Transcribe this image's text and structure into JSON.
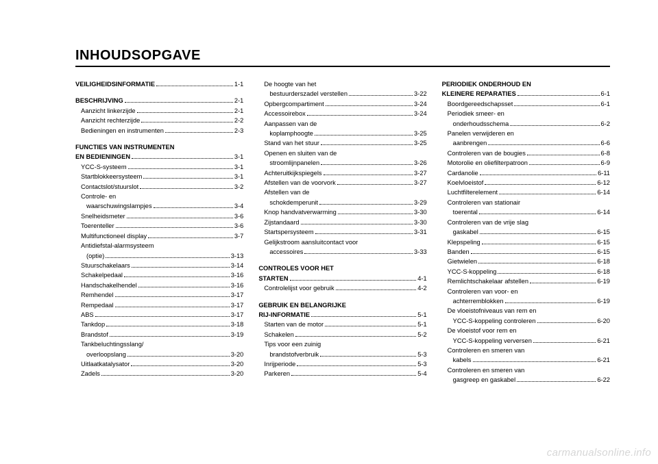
{
  "title": "INHOUDSOPGAVE",
  "watermark": "carmanualsonline.info",
  "sections": [
    {
      "head": {
        "label": "VEILIGHEIDSINFORMATIE",
        "page": "1-1",
        "leaders": true
      },
      "items": []
    },
    {
      "head": {
        "label": "BESCHRIJVING",
        "page": "2-1",
        "leaders": true
      },
      "items": [
        {
          "label": "Aanzicht linkerzijde",
          "page": "2-1"
        },
        {
          "label": "Aanzicht rechterzijde",
          "page": "2-2"
        },
        {
          "label": "Bedieningen en instrumenten",
          "page": "2-3"
        }
      ]
    },
    {
      "head": {
        "label": "FUNCTIES VAN INSTRUMENTEN",
        "cont": "EN BEDIENINGEN",
        "page": "3-1",
        "leaders": true
      },
      "items": [
        {
          "label": "YCC-S-systeem",
          "page": "3-1"
        },
        {
          "label": "Startblokkeersysteem",
          "page": "3-1"
        },
        {
          "label": "Contactslot/stuurslot",
          "page": "3-2"
        },
        {
          "wrap": "Controle- en",
          "label": "waarschuwingslampjes",
          "page": "3-4"
        },
        {
          "label": "Snelheidsmeter",
          "page": "3-6"
        },
        {
          "label": "Toerenteller",
          "page": "3-6"
        },
        {
          "label": "Multifunctioneel display",
          "page": "3-7"
        },
        {
          "wrap": "Antidiefstal-alarmsysteem",
          "label": "(optie)",
          "page": "3-13"
        },
        {
          "label": "Stuurschakelaars",
          "page": "3-14"
        },
        {
          "label": "Schakelpedaal",
          "page": "3-16"
        },
        {
          "label": "Handschakelhendel",
          "page": "3-16"
        },
        {
          "label": "Remhendel",
          "page": "3-17"
        },
        {
          "label": "Rempedaal",
          "page": "3-17"
        },
        {
          "label": "ABS",
          "page": "3-17"
        },
        {
          "label": "Tankdop",
          "page": "3-18"
        },
        {
          "label": "Brandstof",
          "page": "3-19"
        },
        {
          "wrap": "Tankbeluchtingsslang/",
          "label": "overloopslang",
          "page": "3-20"
        },
        {
          "label": "Uitlaatkatalysator",
          "page": "3-20"
        },
        {
          "label": "Zadels",
          "page": "3-20"
        }
      ]
    },
    {
      "raw": true,
      "items": [
        {
          "wrap": "De hoogte van het",
          "label": "bestuurderszadel verstellen",
          "page": "3-22"
        },
        {
          "label": "Opbergcompartiment",
          "page": "3-24"
        },
        {
          "label": "Accessoirebox",
          "page": "3-24"
        },
        {
          "wrap": "Aanpassen van de",
          "label": "koplamphoogte",
          "page": "3-25"
        },
        {
          "label": "Stand van het stuur",
          "page": "3-25"
        },
        {
          "wrap": "Openen en sluiten van de",
          "label": "stroomlijnpanelen",
          "page": "3-26"
        },
        {
          "label": "Achteruitkijkspiegels",
          "page": "3-27"
        },
        {
          "label": "Afstellen van de voorvork",
          "page": "3-27"
        },
        {
          "wrap": "Afstellen van de",
          "label": "schokdemperunit",
          "page": "3-29"
        },
        {
          "label": "Knop handvatverwarming",
          "page": "3-30"
        },
        {
          "label": "Zijstandaard",
          "page": "3-30"
        },
        {
          "label": "Startspersysteem",
          "page": "3-31"
        },
        {
          "wrap": "Gelijkstroom aansluitcontact voor",
          "label": "accessoires",
          "page": "3-33"
        }
      ]
    },
    {
      "head": {
        "label": "CONTROLES VOOR HET",
        "cont": "STARTEN",
        "page": "4-1",
        "leaders": true,
        "contBold": false
      },
      "items": [
        {
          "label": "Controlelijst voor gebruik",
          "page": "4-2"
        }
      ]
    },
    {
      "head": {
        "label": "GEBRUIK EN BELANGRIJKE",
        "cont": "RIJ-INFORMATIE",
        "page": "5-1",
        "leaders": true
      },
      "items": [
        {
          "label": "Starten van de motor",
          "page": "5-1"
        },
        {
          "label": "Schakelen",
          "page": "5-2"
        },
        {
          "wrap": "Tips voor een zuinig",
          "label": "brandstofverbruik",
          "page": "5-3"
        },
        {
          "label": "Inrijperiode",
          "page": "5-3"
        },
        {
          "label": "Parkeren",
          "page": "5-4"
        }
      ]
    },
    {
      "head": {
        "label": "PERIODIEK ONDERHOUD EN",
        "cont": "KLEINERE REPARATIES",
        "page": "6-1",
        "leaders": true
      },
      "items": [
        {
          "label": "Boordgereedschapsset",
          "page": "6-1"
        },
        {
          "wrap": "Periodiek smeer- en",
          "label": "onderhoudsschema",
          "page": "6-2"
        },
        {
          "wrap": "Panelen verwijderen en",
          "label": "aanbrengen",
          "page": "6-6"
        },
        {
          "label": "Controleren van de bougies",
          "page": "6-8"
        },
        {
          "label": "Motorolie en oliefilterpatroon",
          "page": "6-9"
        },
        {
          "label": "Cardanolie",
          "page": "6-11"
        },
        {
          "label": "Koelvloeistof",
          "page": "6-12"
        },
        {
          "label": "Luchtfilterelement",
          "page": "6-14"
        },
        {
          "wrap": "Controleren van stationair",
          "label": "toerental",
          "page": "6-14"
        },
        {
          "wrap": "Controleren van de vrije slag",
          "label": "gaskabel",
          "page": "6-15"
        },
        {
          "label": "Klepspeling",
          "page": "6-15"
        },
        {
          "label": "Banden",
          "page": "6-15"
        },
        {
          "label": "Gietwielen",
          "page": "6-18"
        },
        {
          "label": "YCC-S-koppeling",
          "page": "6-18"
        },
        {
          "label": "Remlichtschakelaar afstellen",
          "page": "6-19"
        },
        {
          "wrap": "Controleren van voor- en",
          "label": "achterremblokken",
          "page": "6-19"
        },
        {
          "wrap": "De vloeistofniveaus van rem en",
          "label": "YCC-S-koppeling controleren",
          "page": "6-20"
        },
        {
          "wrap": "De vloeistof voor rem en",
          "label": "YCC-S-koppeling verversen",
          "page": "6-21"
        },
        {
          "wrap": "Controleren en smeren van",
          "label": "kabels",
          "page": "6-21"
        },
        {
          "wrap": "Controleren en smeren van",
          "label": "gasgreep en gaskabel",
          "page": "6-22"
        }
      ]
    }
  ]
}
